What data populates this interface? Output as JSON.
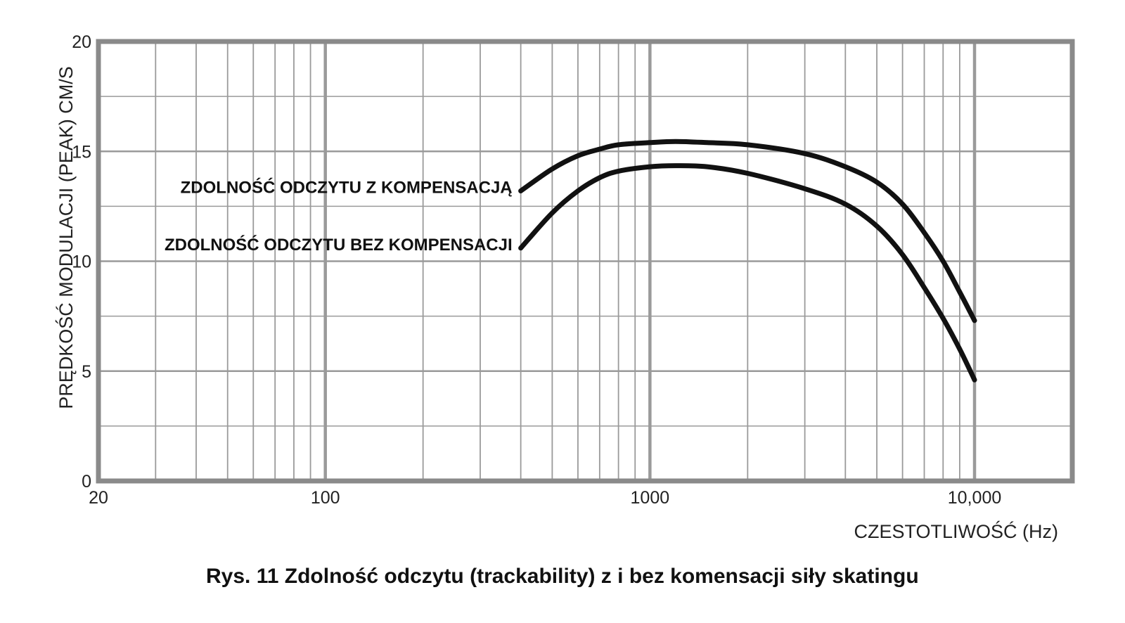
{
  "chart_data": {
    "type": "line",
    "xscale": "log",
    "xlim": [
      20,
      20000
    ],
    "ylim": [
      0,
      20
    ],
    "xticks": [
      {
        "value": 20,
        "label": "20"
      },
      {
        "value": 100,
        "label": "100"
      },
      {
        "value": 1000,
        "label": "1000"
      },
      {
        "value": 10000,
        "label": "10,000"
      }
    ],
    "yticks": [
      {
        "value": 0,
        "label": "0"
      },
      {
        "value": 5,
        "label": "5"
      },
      {
        "value": 10,
        "label": "10"
      },
      {
        "value": 15,
        "label": "15"
      },
      {
        "value": 20,
        "label": "20"
      }
    ],
    "grid": true,
    "xlabel": "CZESTOTLIWOŚĆ (Hz)",
    "ylabel": "PRĘDKOŚĆ MODULACJI (PEAK) CM/S",
    "caption": "Rys. 11 Zdolność odczytu (trackability) z i bez komensacji siły skatingu",
    "series": [
      {
        "name": "ZDOLNOŚĆ ODCZYTU Z KOMPENSACJĄ",
        "color": "#111111",
        "x": [
          400,
          500,
          600,
          700,
          800,
          1000,
          1200,
          1500,
          2000,
          3000,
          4000,
          5000,
          6000,
          7000,
          8000,
          9000,
          10000
        ],
        "y": [
          13.2,
          14.2,
          14.8,
          15.1,
          15.3,
          15.4,
          15.45,
          15.4,
          15.3,
          14.9,
          14.3,
          13.6,
          12.6,
          11.3,
          10.0,
          8.6,
          7.3
        ]
      },
      {
        "name": "ZDOLNOŚĆ ODCZYTU BEZ KOMPENSACJI",
        "color": "#111111",
        "x": [
          400,
          500,
          600,
          700,
          800,
          1000,
          1200,
          1500,
          2000,
          3000,
          4000,
          5000,
          6000,
          7000,
          8000,
          9000,
          10000
        ],
        "y": [
          10.6,
          12.2,
          13.2,
          13.8,
          14.1,
          14.3,
          14.35,
          14.3,
          14.0,
          13.3,
          12.6,
          11.6,
          10.3,
          8.8,
          7.4,
          6.0,
          4.6
        ]
      }
    ]
  }
}
